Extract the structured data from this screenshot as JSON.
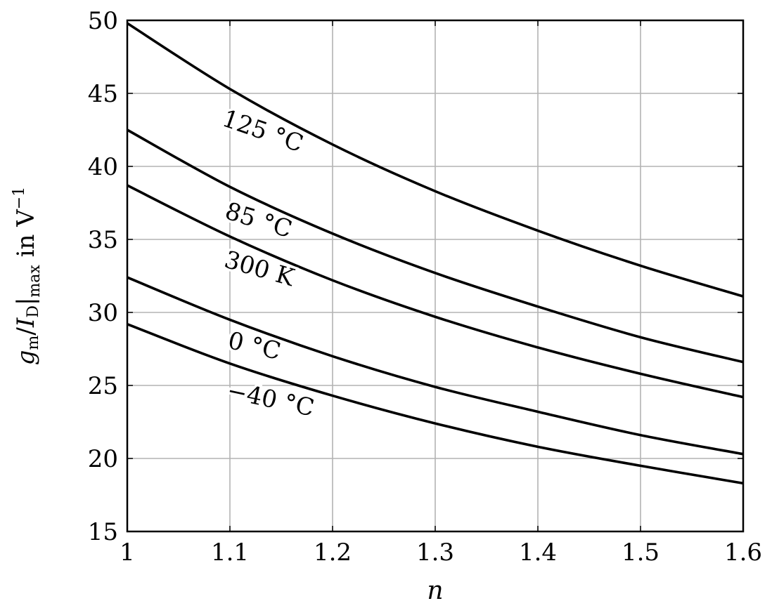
{
  "chart_data": {
    "type": "line",
    "xlabel": "n",
    "ylabel": {
      "main": "g",
      "main_sub": "m",
      "slash": "/",
      "denom": "I",
      "denom_sub": "D",
      "bar_sub": "max",
      "unit_text": " in V",
      "unit_sup": "−1"
    },
    "xlim": [
      1,
      1.6
    ],
    "ylim": [
      15,
      50
    ],
    "xticks": [
      1,
      1.1,
      1.2,
      1.3,
      1.4,
      1.5,
      1.6
    ],
    "xtick_labels": [
      "1",
      "1.1",
      "1.2",
      "1.3",
      "1.4",
      "1.5",
      "1.6"
    ],
    "yticks": [
      15,
      20,
      25,
      30,
      35,
      40,
      45,
      50
    ],
    "ytick_labels": [
      "15",
      "20",
      "25",
      "30",
      "35",
      "40",
      "45",
      "50"
    ],
    "grid": true,
    "legend": "none",
    "x": [
      1.0,
      1.1,
      1.2,
      1.3,
      1.4,
      1.5,
      1.6
    ],
    "series": [
      {
        "name": "125 °C",
        "values": [
          49.8,
          45.3,
          41.5,
          38.3,
          35.6,
          33.2,
          31.1
        ]
      },
      {
        "name": "85 °C",
        "values": [
          42.5,
          38.6,
          35.4,
          32.7,
          30.4,
          28.3,
          26.6
        ]
      },
      {
        "name": "300 K",
        "values": [
          38.7,
          35.2,
          32.2,
          29.7,
          27.6,
          25.8,
          24.2
        ]
      },
      {
        "name": "0 °C",
        "values": [
          32.4,
          29.5,
          27.0,
          24.9,
          23.2,
          21.6,
          20.3
        ]
      },
      {
        "name": "−40 °C",
        "values": [
          29.2,
          26.5,
          24.3,
          22.4,
          20.8,
          19.5,
          18.3
        ]
      }
    ],
    "line_color": "#000000",
    "grid_color": "#b3b3b3"
  }
}
